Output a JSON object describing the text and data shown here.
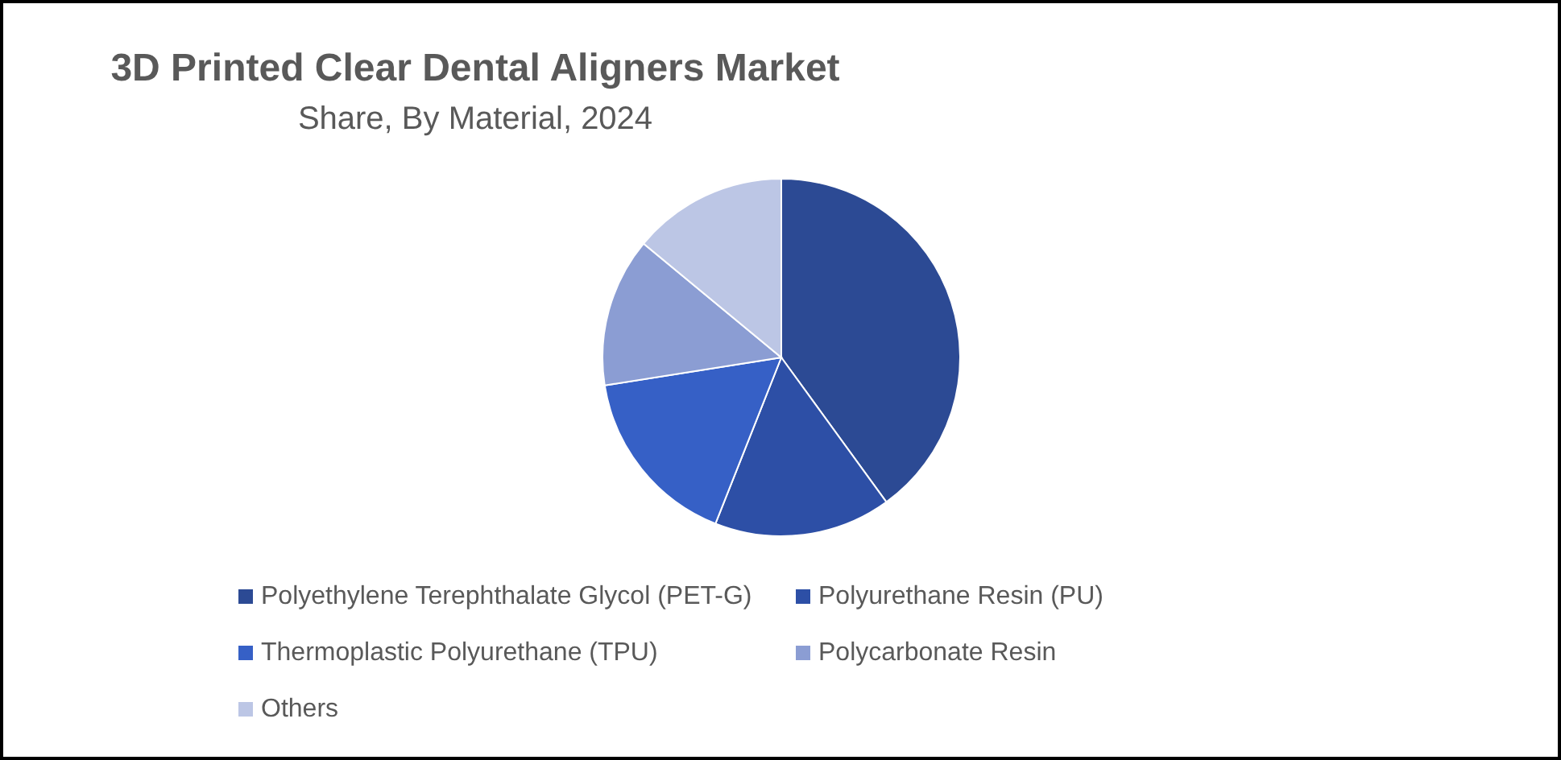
{
  "chart_data": {
    "type": "pie",
    "title": "3D Printed Clear Dental Aligners Market",
    "subtitle": "Share, By Material, 2024",
    "categories": [
      "Polyethylene Terephthalate Glycol (PET-G)",
      "Polyurethane Resin (PU)",
      "Thermoplastic Polyurethane (TPU)",
      "Polycarbonate Resin",
      "Others"
    ],
    "values": [
      40,
      16,
      16.5,
      13.5,
      14
    ],
    "colors": [
      "#2c4a94",
      "#2d4fa6",
      "#3660c6",
      "#8b9dd3",
      "#bcc6e5"
    ],
    "legend": "bottom"
  }
}
